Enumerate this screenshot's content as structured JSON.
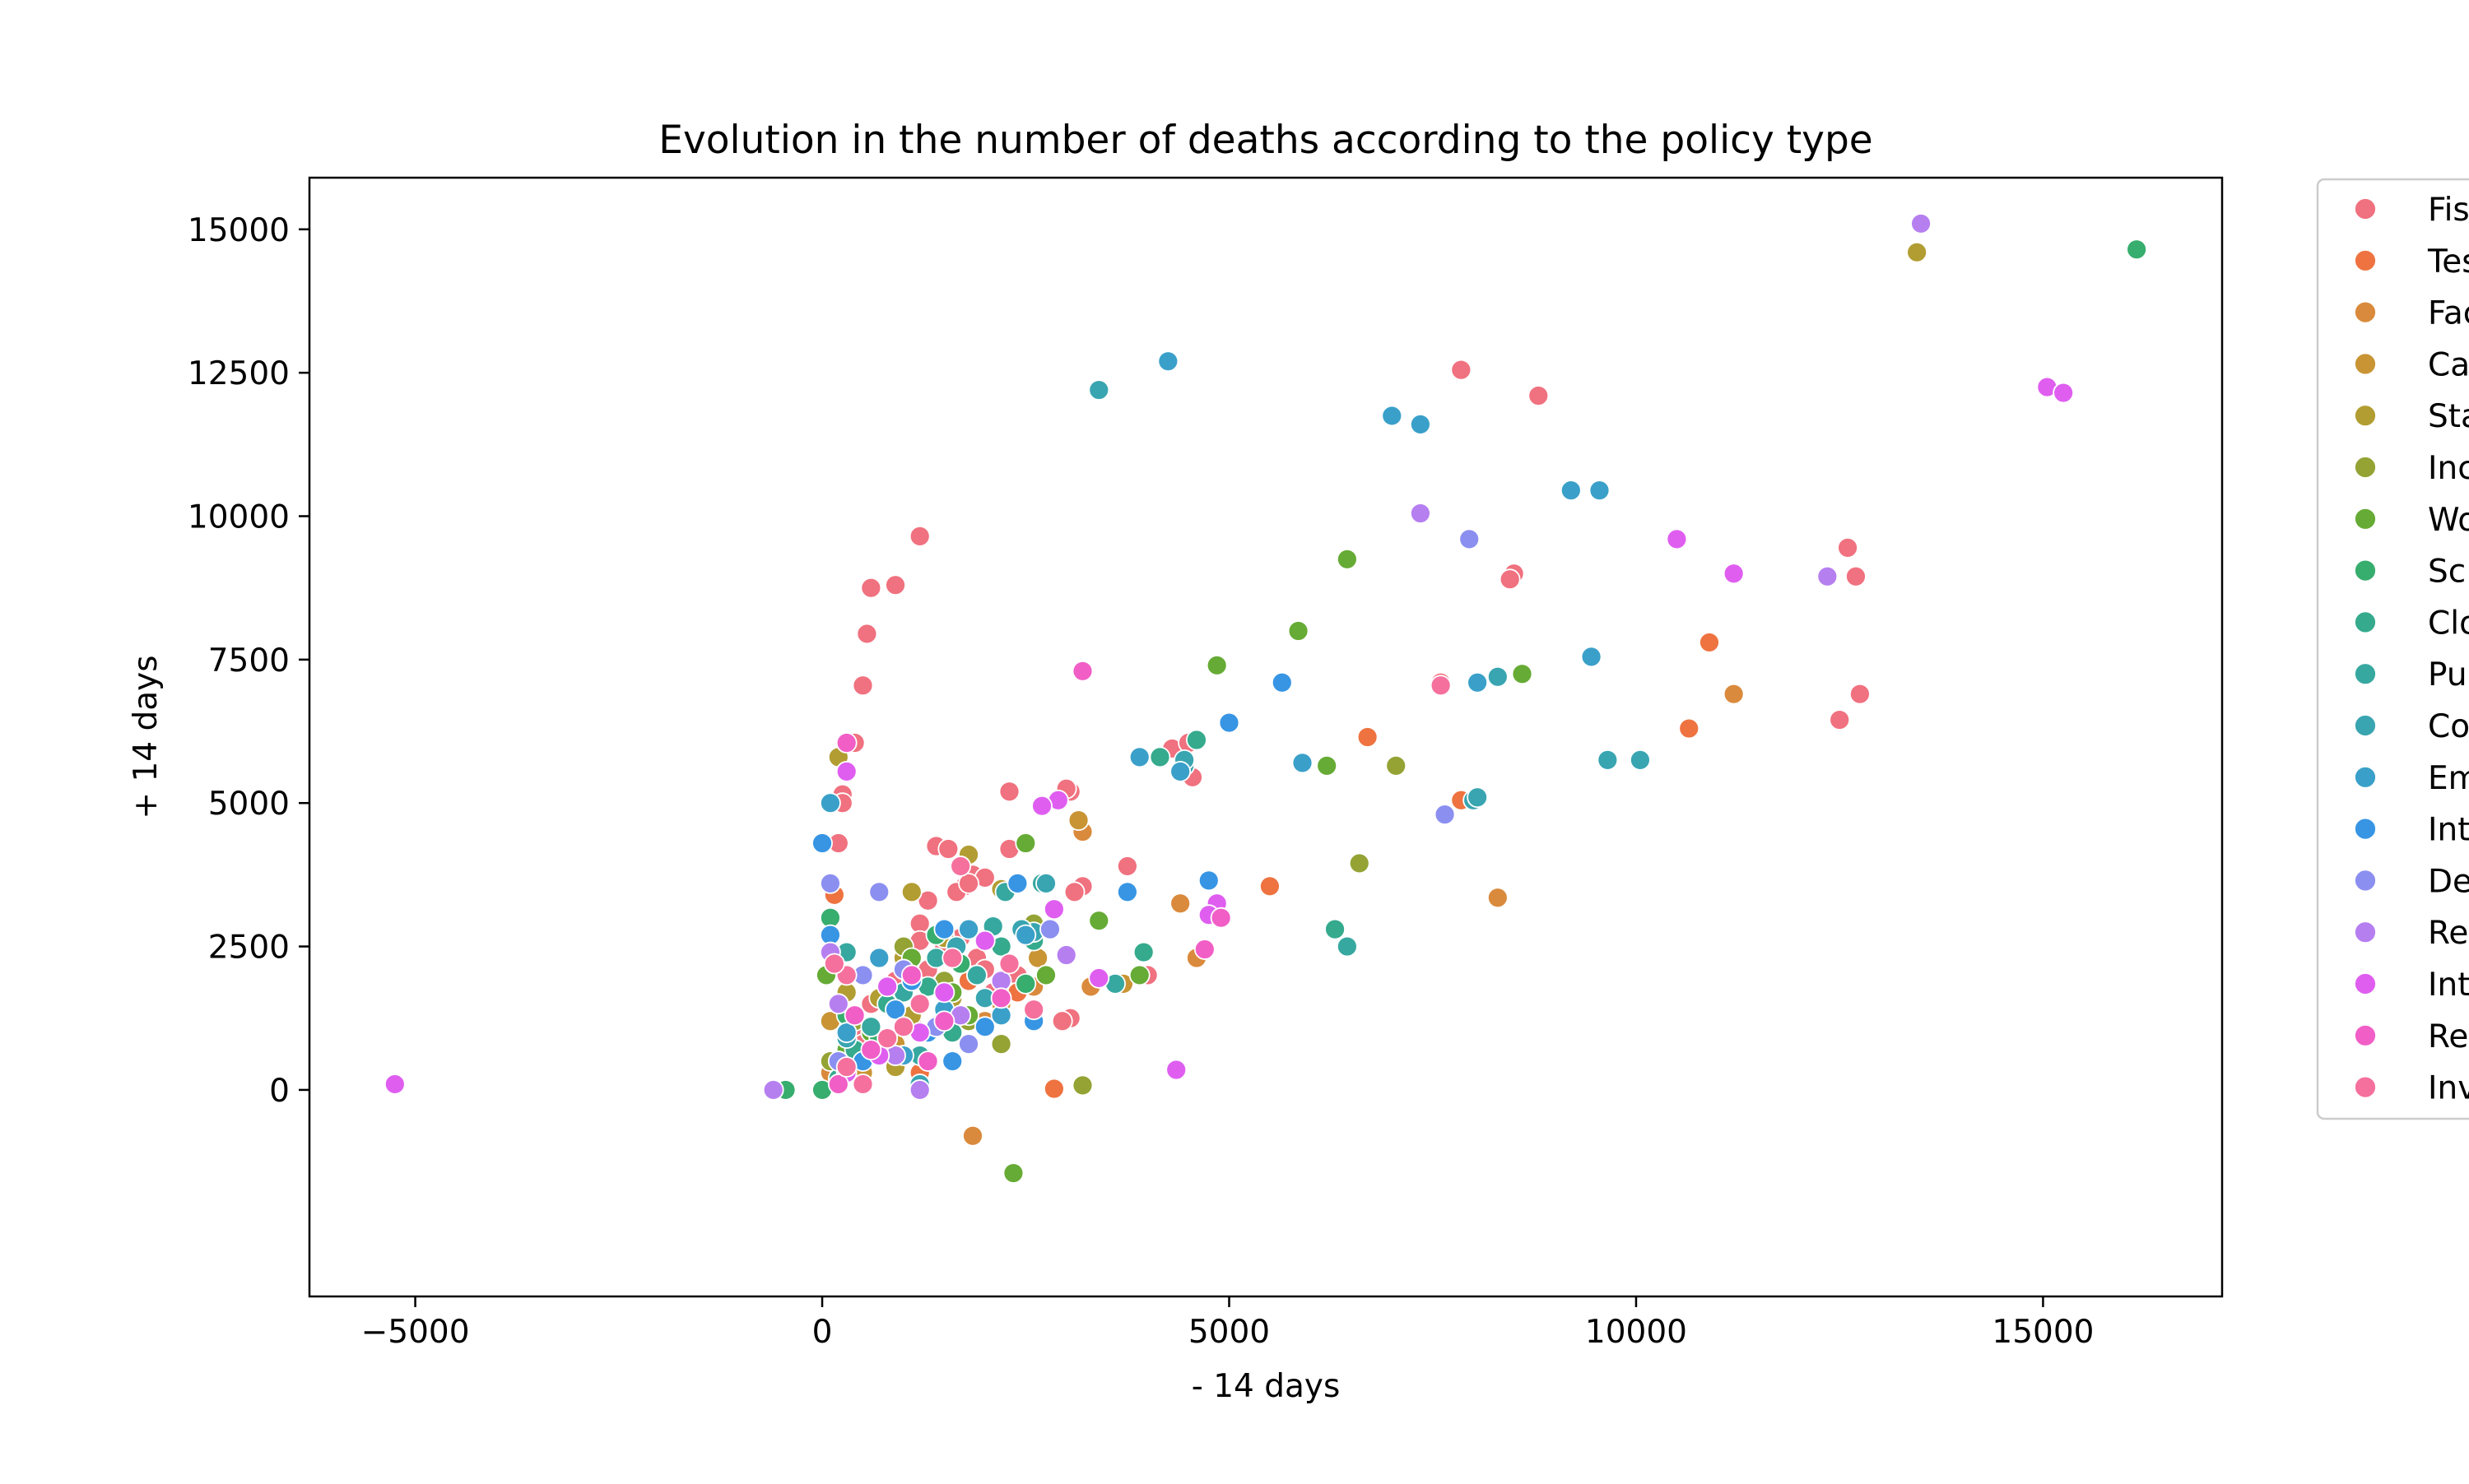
{
  "chart_data": {
    "type": "scatter",
    "title": "Evolution in the number of deaths according to the policy type",
    "xlabel": "- 14 days",
    "ylabel": "+ 14 days",
    "xlim": [
      -6300,
      17200
    ],
    "ylim": [
      -3600,
      15900
    ],
    "xticks": [
      -5000,
      0,
      5000,
      10000,
      15000
    ],
    "yticks": [
      0,
      2500,
      5000,
      7500,
      10000,
      12500,
      15000
    ],
    "xtick_labels": [
      "−5000",
      "0",
      "5000",
      "10000",
      "15000"
    ],
    "ytick_labels": [
      "0",
      "2500",
      "5000",
      "7500",
      "10000",
      "12500",
      "15000"
    ],
    "grid": false,
    "legend_position": "outside-right (cropped)",
    "legend_labels": [
      "Fis",
      "Tes",
      "Fac",
      "Ca",
      "Sta",
      "Inc",
      "Wo",
      "Sc",
      "Clo",
      "Pu",
      "Co",
      "Em",
      "Int",
      "De",
      "Re",
      "Int",
      "Re",
      "Inv"
    ],
    "series": [
      {
        "name": "Fis",
        "color": "#f0717f",
        "points": [
          [
            7850,
            12550
          ],
          [
            8800,
            12100
          ],
          [
            12600,
            9450
          ],
          [
            12700,
            8950
          ],
          [
            8500,
            9000
          ],
          [
            8450,
            8900
          ],
          [
            12750,
            6900
          ],
          [
            12500,
            6450
          ],
          [
            4300,
            5950
          ],
          [
            4500,
            6050
          ],
          [
            4550,
            5450
          ],
          [
            2300,
            5200
          ],
          [
            3050,
            5200
          ],
          [
            3000,
            5250
          ],
          [
            2300,
            4200
          ],
          [
            1400,
            4250
          ],
          [
            1550,
            4200
          ],
          [
            1850,
            3750
          ],
          [
            2000,
            3700
          ],
          [
            1750,
            3550
          ],
          [
            1650,
            3450
          ],
          [
            1200,
            2900
          ],
          [
            1200,
            2600
          ],
          [
            1700,
            2650
          ],
          [
            1900,
            2300
          ],
          [
            2100,
            1700
          ],
          [
            2300,
            1800
          ],
          [
            1500,
            2500
          ],
          [
            3200,
            3550
          ],
          [
            3100,
            3450
          ],
          [
            3750,
            3900
          ],
          [
            4000,
            2000
          ],
          [
            3050,
            1250
          ],
          [
            2950,
            1200
          ],
          [
            2000,
            2100
          ],
          [
            2400,
            2000
          ],
          [
            1300,
            2100
          ],
          [
            900,
            1900
          ],
          [
            600,
            1500
          ],
          [
            400,
            1000
          ],
          [
            1800,
            3600
          ],
          [
            1300,
            3300
          ],
          [
            500,
            800
          ],
          [
            1100,
            1200
          ],
          [
            7600,
            7100
          ],
          [
            1200,
            9650
          ],
          [
            900,
            8800
          ],
          [
            600,
            8750
          ],
          [
            550,
            7950
          ],
          [
            500,
            7050
          ],
          [
            400,
            6050
          ],
          [
            250,
            5150
          ],
          [
            250,
            5000
          ],
          [
            200,
            4300
          ]
        ]
      },
      {
        "name": "Tes",
        "color": "#ee7340",
        "points": [
          [
            10900,
            7800
          ],
          [
            6700,
            6150
          ],
          [
            10650,
            6300
          ],
          [
            7850,
            5050
          ],
          [
            5500,
            3550
          ],
          [
            2850,
            20
          ],
          [
            150,
            3400
          ],
          [
            1800,
            1900
          ],
          [
            2400,
            1700
          ],
          [
            900,
            500
          ],
          [
            1200,
            300
          ]
        ]
      },
      {
        "name": "Fac",
        "color": "#da8a3c",
        "points": [
          [
            11200,
            6900
          ],
          [
            8300,
            3350
          ],
          [
            3200,
            4500
          ],
          [
            4400,
            3250
          ],
          [
            4600,
            2300
          ],
          [
            1850,
            -800
          ],
          [
            2600,
            1800
          ],
          [
            3300,
            1800
          ],
          [
            300,
            600
          ],
          [
            100,
            300
          ],
          [
            2000,
            1200
          ]
        ]
      },
      {
        "name": "Ca",
        "color": "#c99434",
        "points": [
          [
            3150,
            4700
          ],
          [
            2650,
            2300
          ],
          [
            3700,
            1850
          ],
          [
            2200,
            1500
          ],
          [
            1400,
            1100
          ],
          [
            900,
            800
          ],
          [
            500,
            300
          ],
          [
            1500,
            2700
          ],
          [
            100,
            1200
          ]
        ]
      },
      {
        "name": "Sta",
        "color": "#b29d32",
        "points": [
          [
            13450,
            14600
          ],
          [
            1100,
            3450
          ],
          [
            1800,
            4100
          ],
          [
            2200,
            3500
          ],
          [
            1500,
            2650
          ],
          [
            1000,
            2300
          ],
          [
            700,
            1600
          ],
          [
            1100,
            1300
          ],
          [
            300,
            1700
          ],
          [
            900,
            400
          ],
          [
            1900,
            2000
          ],
          [
            1600,
            1600
          ],
          [
            200,
            5800
          ]
        ]
      },
      {
        "name": "Inc",
        "color": "#94a334",
        "points": [
          [
            7050,
            5650
          ],
          [
            6600,
            3950
          ],
          [
            3200,
            80
          ],
          [
            1500,
            1900
          ],
          [
            2600,
            2900
          ],
          [
            1800,
            1200
          ],
          [
            1000,
            2500
          ],
          [
            400,
            1200
          ],
          [
            800,
            900
          ],
          [
            100,
            500
          ],
          [
            2200,
            800
          ]
        ]
      },
      {
        "name": "Wo",
        "color": "#66ab35",
        "points": [
          [
            6450,
            9250
          ],
          [
            5850,
            8000
          ],
          [
            4850,
            7400
          ],
          [
            8600,
            7250
          ],
          [
            6200,
            5650
          ],
          [
            3400,
            2950
          ],
          [
            2500,
            4300
          ],
          [
            3900,
            2000
          ],
          [
            2750,
            2000
          ],
          [
            2350,
            -1450
          ],
          [
            50,
            2000
          ],
          [
            1600,
            1700
          ],
          [
            1800,
            1300
          ],
          [
            600,
            1000
          ],
          [
            1100,
            2300
          ],
          [
            300,
            700
          ]
        ]
      },
      {
        "name": "Sc",
        "color": "#37ad6e",
        "points": [
          [
            16150,
            14650
          ],
          [
            1400,
            2700
          ],
          [
            2500,
            1850
          ],
          [
            700,
            900
          ],
          [
            1200,
            1500
          ],
          [
            300,
            1300
          ],
          [
            100,
            3000
          ],
          [
            1700,
            2200
          ],
          [
            -450,
            0
          ],
          [
            0,
            0
          ]
        ]
      },
      {
        "name": "Clo",
        "color": "#35aa8d",
        "points": [
          [
            4150,
            5800
          ],
          [
            4600,
            6100
          ],
          [
            6300,
            2800
          ],
          [
            2600,
            2600
          ],
          [
            2200,
            2500
          ],
          [
            1300,
            1800
          ],
          [
            800,
            1500
          ],
          [
            400,
            700
          ],
          [
            1600,
            1000
          ],
          [
            200,
            200
          ],
          [
            3950,
            2400
          ]
        ]
      },
      {
        "name": "Pu",
        "color": "#37a8a0",
        "points": [
          [
            6450,
            2500
          ],
          [
            2250,
            3450
          ],
          [
            2700,
            3600
          ],
          [
            3600,
            1850
          ],
          [
            2100,
            2850
          ],
          [
            1400,
            2300
          ],
          [
            1900,
            2000
          ],
          [
            1000,
            1700
          ],
          [
            600,
            1100
          ],
          [
            300,
            2400
          ],
          [
            1200,
            600
          ]
        ]
      },
      {
        "name": "Co",
        "color": "#39a5b1",
        "points": [
          [
            3400,
            12200
          ],
          [
            8000,
            5050
          ],
          [
            8050,
            5100
          ],
          [
            9650,
            5750
          ],
          [
            10050,
            5750
          ],
          [
            4450,
            5650
          ],
          [
            4450,
            5750
          ],
          [
            2600,
            2750
          ],
          [
            2450,
            2800
          ],
          [
            2750,
            3600
          ],
          [
            1650,
            2500
          ],
          [
            900,
            1400
          ],
          [
            300,
            900
          ],
          [
            2000,
            1600
          ],
          [
            1200,
            100
          ],
          [
            8300,
            7200
          ]
        ]
      },
      {
        "name": "Em",
        "color": "#3aa0c9",
        "points": [
          [
            4250,
            12700
          ],
          [
            7000,
            11750
          ],
          [
            7350,
            11600
          ],
          [
            9200,
            10450
          ],
          [
            9550,
            10450
          ],
          [
            3900,
            5800
          ],
          [
            5900,
            5700
          ],
          [
            8050,
            7100
          ],
          [
            9450,
            7550
          ],
          [
            4400,
            5550
          ],
          [
            2500,
            2700
          ],
          [
            1800,
            2800
          ],
          [
            1500,
            1400
          ],
          [
            700,
            2300
          ],
          [
            300,
            1000
          ],
          [
            1000,
            600
          ],
          [
            100,
            5000
          ],
          [
            2200,
            1300
          ]
        ]
      },
      {
        "name": "Int",
        "color": "#3795e4",
        "points": [
          [
            5000,
            6400
          ],
          [
            5650,
            7100
          ],
          [
            4750,
            3650
          ],
          [
            3750,
            3450
          ],
          [
            2600,
            1200
          ],
          [
            2400,
            3600
          ],
          [
            1600,
            500
          ],
          [
            1100,
            1900
          ],
          [
            900,
            1400
          ],
          [
            500,
            500
          ],
          [
            2000,
            1100
          ],
          [
            1500,
            2800
          ],
          [
            0,
            4300
          ],
          [
            100,
            2700
          ],
          [
            1300,
            1000
          ]
        ]
      },
      {
        "name": "De",
        "color": "#8b8ff0",
        "points": [
          [
            7950,
            9600
          ],
          [
            7650,
            4800
          ],
          [
            700,
            3450
          ],
          [
            1000,
            2100
          ],
          [
            500,
            2000
          ],
          [
            1400,
            1100
          ],
          [
            200,
            500
          ],
          [
            1800,
            800
          ],
          [
            100,
            3600
          ],
          [
            2800,
            2800
          ]
        ]
      },
      {
        "name": "Re",
        "color": "#b67ff0",
        "points": [
          [
            13500,
            15100
          ],
          [
            7350,
            10050
          ],
          [
            12350,
            8950
          ],
          [
            3000,
            2350
          ],
          [
            1700,
            1300
          ],
          [
            900,
            600
          ],
          [
            -600,
            0
          ],
          [
            200,
            1500
          ],
          [
            1200,
            0
          ],
          [
            2200,
            1900
          ],
          [
            100,
            2400
          ]
        ]
      },
      {
        "name": "Int",
        "color": "#df5ef0",
        "points": [
          [
            15050,
            12250
          ],
          [
            15250,
            12150
          ],
          [
            10500,
            9600
          ],
          [
            11200,
            9000
          ],
          [
            4850,
            3250
          ],
          [
            4750,
            3050
          ],
          [
            2900,
            5050
          ],
          [
            2700,
            4950
          ],
          [
            2850,
            3150
          ],
          [
            3400,
            1950
          ],
          [
            -5250,
            100
          ],
          [
            4350,
            350
          ],
          [
            1200,
            1000
          ],
          [
            700,
            600
          ],
          [
            300,
            300
          ],
          [
            1500,
            1700
          ],
          [
            800,
            1800
          ],
          [
            300,
            5550
          ],
          [
            2000,
            2600
          ]
        ]
      },
      {
        "name": "Re",
        "color": "#f15ec6",
        "points": [
          [
            3200,
            7300
          ],
          [
            4700,
            2450
          ],
          [
            4900,
            3000
          ],
          [
            1100,
            2000
          ],
          [
            1500,
            1200
          ],
          [
            600,
            700
          ],
          [
            200,
            100
          ],
          [
            2200,
            1600
          ],
          [
            400,
            1300
          ],
          [
            300,
            6050
          ],
          [
            1300,
            500
          ]
        ]
      },
      {
        "name": "Inv",
        "color": "#f5709d",
        "points": [
          [
            7600,
            7050
          ],
          [
            1700,
            3900
          ],
          [
            2300,
            2200
          ],
          [
            1200,
            1500
          ],
          [
            800,
            900
          ],
          [
            300,
            400
          ],
          [
            1600,
            2300
          ],
          [
            500,
            100
          ],
          [
            1000,
            1100
          ],
          [
            2600,
            1400
          ],
          [
            300,
            2000
          ],
          [
            150,
            2200
          ]
        ]
      }
    ]
  }
}
